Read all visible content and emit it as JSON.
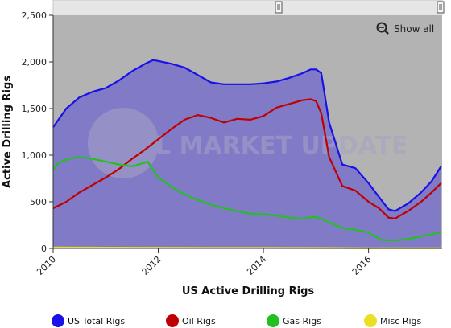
{
  "chart_data": {
    "type": "line",
    "title": "",
    "xlabel": "US Active Drilling Rigs",
    "ylabel": "Active Drilling Rigs",
    "xlim": [
      2010.0,
      2017.4
    ],
    "ylim": [
      0,
      2500
    ],
    "y_ticks": [
      0,
      500,
      1000,
      1500,
      2000,
      2500
    ],
    "y_tick_labels": [
      "0",
      "500",
      "1,000",
      "1,500",
      "2,000",
      "2,500"
    ],
    "x_ticks": [
      2010,
      2012,
      2014,
      2016
    ],
    "x_tick_labels": [
      "2010",
      "2012",
      "2014",
      "2016"
    ],
    "grid": false,
    "legend": "bottom",
    "series": [
      {
        "name": "US Total Rigs",
        "color": "#1a10e8",
        "x": [
          2010.0,
          2010.25,
          2010.5,
          2010.75,
          2011.0,
          2011.25,
          2011.5,
          2011.75,
          2011.9,
          2012.0,
          2012.25,
          2012.5,
          2012.75,
          2013.0,
          2013.25,
          2013.5,
          2013.75,
          2014.0,
          2014.25,
          2014.5,
          2014.75,
          2014.9,
          2015.0,
          2015.1,
          2015.25,
          2015.5,
          2015.75,
          2016.0,
          2016.2,
          2016.38,
          2016.5,
          2016.75,
          2017.0,
          2017.2,
          2017.38
        ],
        "y": [
          1300,
          1500,
          1620,
          1680,
          1720,
          1800,
          1900,
          1980,
          2020,
          2010,
          1980,
          1940,
          1860,
          1780,
          1760,
          1760,
          1760,
          1770,
          1790,
          1830,
          1880,
          1920,
          1920,
          1880,
          1350,
          900,
          860,
          700,
          550,
          420,
          400,
          480,
          600,
          720,
          880
        ]
      },
      {
        "name": "Oil Rigs",
        "color": "#c00000",
        "x": [
          2010.0,
          2010.25,
          2010.5,
          2010.75,
          2011.0,
          2011.25,
          2011.5,
          2011.75,
          2012.0,
          2012.25,
          2012.5,
          2012.75,
          2013.0,
          2013.25,
          2013.5,
          2013.75,
          2014.0,
          2014.25,
          2014.5,
          2014.75,
          2014.9,
          2015.0,
          2015.1,
          2015.25,
          2015.5,
          2015.75,
          2016.0,
          2016.2,
          2016.38,
          2016.5,
          2016.75,
          2017.0,
          2017.2,
          2017.38
        ],
        "y": [
          430,
          500,
          600,
          680,
          760,
          850,
          960,
          1060,
          1170,
          1280,
          1380,
          1430,
          1400,
          1350,
          1390,
          1380,
          1420,
          1510,
          1550,
          1590,
          1600,
          1580,
          1450,
          980,
          670,
          620,
          500,
          430,
          330,
          320,
          400,
          500,
          600,
          700
        ]
      },
      {
        "name": "Gas Rigs",
        "color": "#22c020",
        "x": [
          2010.0,
          2010.1,
          2010.3,
          2010.5,
          2010.75,
          2011.0,
          2011.25,
          2011.5,
          2011.75,
          2011.8,
          2011.9,
          2012.0,
          2012.25,
          2012.5,
          2012.75,
          2013.0,
          2013.25,
          2013.5,
          2013.75,
          2014.0,
          2014.25,
          2014.5,
          2014.75,
          2015.0,
          2015.25,
          2015.5,
          2015.75,
          2016.0,
          2016.25,
          2016.5,
          2016.75,
          2017.0,
          2017.2,
          2017.38
        ],
        "y": [
          840,
          920,
          960,
          980,
          960,
          930,
          900,
          880,
          920,
          930,
          840,
          760,
          660,
          580,
          520,
          470,
          430,
          400,
          370,
          370,
          350,
          330,
          320,
          340,
          280,
          220,
          200,
          170,
          90,
          85,
          100,
          130,
          150,
          175
        ]
      },
      {
        "name": "Misc Rigs",
        "color": "#e8e020",
        "x": [
          2010.0,
          2011.0,
          2012.0,
          2013.0,
          2014.0,
          2015.0,
          2016.0,
          2017.0,
          2017.38
        ],
        "y": [
          10,
          8,
          7,
          6,
          5,
          4,
          2,
          2,
          2
        ]
      }
    ],
    "watermark": "STEEL MARKET UPDATE",
    "zoom_button": "Show all",
    "colors": {
      "plot_background": "#b3b3b3",
      "area_fill": "#7b74c9"
    }
  }
}
